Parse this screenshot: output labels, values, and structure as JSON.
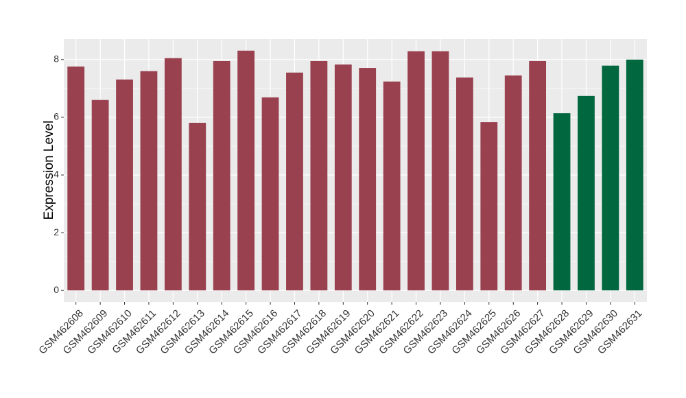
{
  "chart_data": {
    "type": "bar",
    "y_label": "Expression Level",
    "categories": [
      "GSM462608",
      "GSM462609",
      "GSM462610",
      "GSM462611",
      "GSM462612",
      "GSM462613",
      "GSM462614",
      "GSM462615",
      "GSM462616",
      "GSM462617",
      "GSM462618",
      "GSM462619",
      "GSM462620",
      "GSM462621",
      "GSM462622",
      "GSM462623",
      "GSM462624",
      "GSM462625",
      "GSM462626",
      "GSM462627",
      "GSM462628",
      "GSM462629",
      "GSM462630",
      "GSM462631"
    ],
    "values": [
      7.76,
      6.6,
      7.31,
      7.6,
      8.05,
      5.81,
      7.95,
      8.31,
      6.69,
      7.55,
      7.95,
      7.83,
      7.71,
      7.24,
      8.29,
      8.29,
      7.38,
      5.83,
      7.45,
      7.95,
      6.14,
      6.74,
      7.79,
      8.0
    ],
    "colors": [
      "#9a4150",
      "#9a4150",
      "#9a4150",
      "#9a4150",
      "#9a4150",
      "#9a4150",
      "#9a4150",
      "#9a4150",
      "#9a4150",
      "#9a4150",
      "#9a4150",
      "#9a4150",
      "#9a4150",
      "#9a4150",
      "#9a4150",
      "#9a4150",
      "#9a4150",
      "#9a4150",
      "#9a4150",
      "#9a4150",
      "#00673f",
      "#00673f",
      "#00673f",
      "#00673f"
    ],
    "ylim": [
      -0.4,
      8.71
    ],
    "yticks": [
      0,
      2,
      4,
      6,
      8
    ],
    "grid": true
  }
}
